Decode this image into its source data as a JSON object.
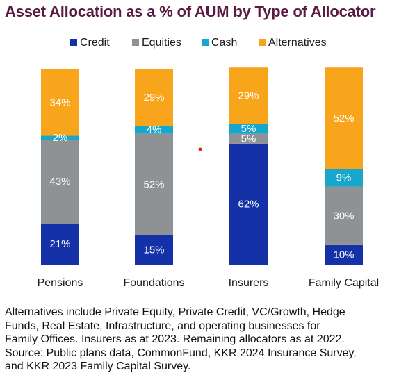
{
  "chart_data": {
    "type": "bar",
    "stacked": true,
    "title": "Asset Allocation as a % of AUM by Type of Allocator",
    "xlabel": "",
    "ylabel": "",
    "ylim": [
      0,
      100
    ],
    "unit": "%",
    "grid": false,
    "legend_position": "top",
    "categories": [
      "Pensions",
      "Foundations",
      "Insurers",
      "Family Capital"
    ],
    "series": [
      {
        "name": "Credit",
        "color": "#1431a8",
        "label_color": "#ffffff",
        "values": [
          21,
          15,
          62,
          10
        ]
      },
      {
        "name": "Equities",
        "color": "#8e9295",
        "label_color": "#ffffff",
        "values": [
          43,
          52,
          5,
          30
        ]
      },
      {
        "name": "Cash",
        "color": "#18a6cc",
        "label_color": "#ffffff",
        "values": [
          2,
          4,
          5,
          9
        ]
      },
      {
        "name": "Alternatives",
        "color": "#f8a51c",
        "label_color": "#ffffff",
        "values": [
          34,
          29,
          29,
          52
        ]
      }
    ]
  },
  "notes": {
    "lines": [
      "Alternatives include Private Equity, Private Credit, VC/Growth, Hedge",
      "Funds, Real Estate, Infrastructure, and operating businesses for",
      "Family Offices. Insurers as at 2023. Remaining allocators as at 2022.",
      "Source: Public plans data, CommonFund, KKR 2024 Insurance Survey,",
      "and KKR 2023 Family Capital Survey."
    ]
  },
  "colors": {
    "title": "#5a1a43",
    "axis": "#bfbfbf",
    "marker": "#e2231a"
  }
}
